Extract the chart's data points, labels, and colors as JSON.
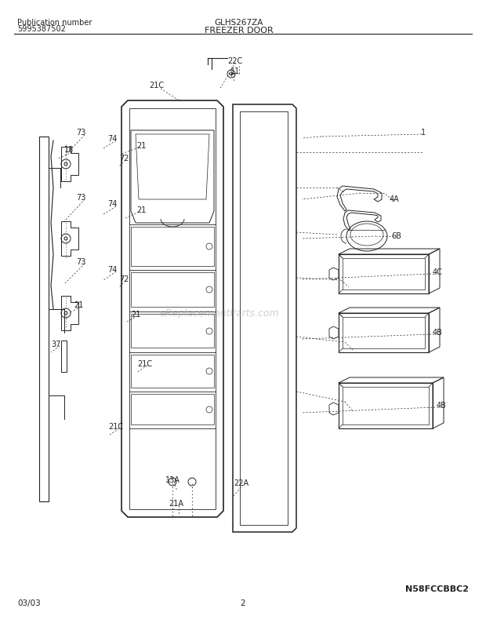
{
  "title": "FREEZER DOOR",
  "pub_label": "Publication number",
  "pub_number": "5995387502",
  "model": "GLHS267ZA",
  "date": "03/03",
  "page": "2",
  "part_number": "N58FCCBBC2",
  "bg_color": "#ffffff",
  "line_color": "#222222",
  "watermark": "eReplacementParts.com",
  "figsize": [
    6.2,
    7.94
  ],
  "dpi": 100
}
